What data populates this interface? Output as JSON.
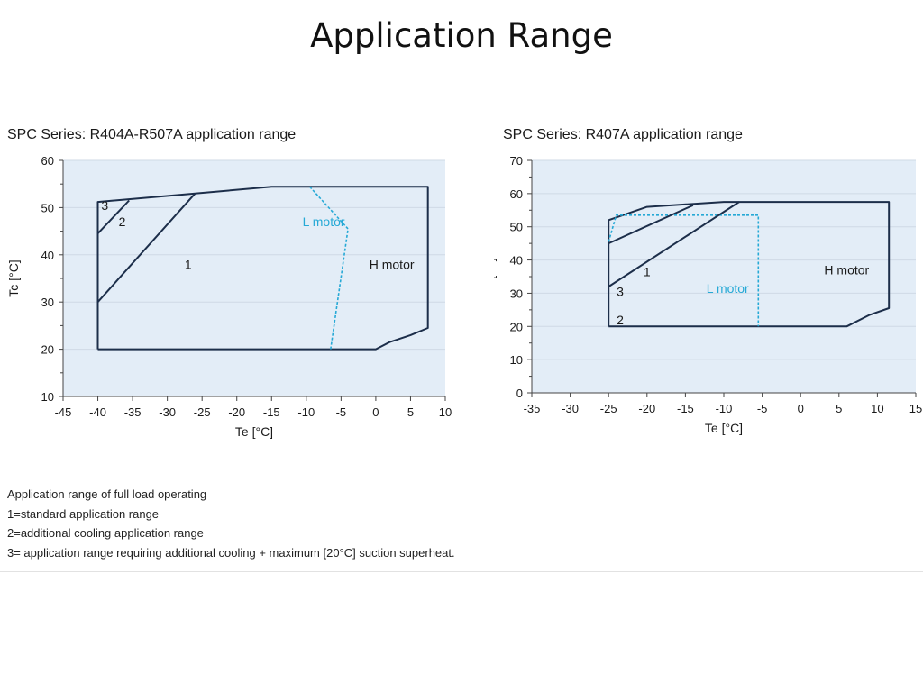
{
  "page": {
    "title": "Application Range"
  },
  "colors": {
    "plot_bg": "#e3edf7",
    "grid": "#cfdae6",
    "envelope": "#1c2e4a",
    "l_motor": "#26a9d6",
    "text": "#1a1a1a"
  },
  "notes": {
    "heading": "Application range of full load operating",
    "lines": [
      "1=standard application range",
      "2=additional cooling application range",
      "3= application range requiring additional cooling + maximum [20°C] suction superheat."
    ]
  },
  "chart_data": [
    {
      "type": "line",
      "title": "SPC Series: R404A-R507A application range",
      "xlabel": "Te [°C]",
      "ylabel": "Tc [°C]",
      "xlim": [
        -45,
        10
      ],
      "ylim": [
        10,
        60
      ],
      "xticks": [
        -45,
        -40,
        -35,
        -30,
        -25,
        -20,
        -15,
        -10,
        -5,
        0,
        5,
        10
      ],
      "yticks": [
        10,
        20,
        30,
        40,
        50,
        60
      ],
      "grid": "horizontal",
      "series": [
        {
          "name": "H motor",
          "style": "solid",
          "color": "#1c2e4a",
          "x": [
            -40,
            -40,
            -26,
            -15,
            7.5,
            7.5,
            5,
            2,
            0,
            -40
          ],
          "y": [
            20,
            51.2,
            53,
            54.4,
            54.4,
            24.5,
            23,
            21.5,
            20,
            20
          ]
        },
        {
          "name": "L motor",
          "style": "dashed",
          "color": "#26a9d6",
          "x": [
            -9.5,
            -4,
            -6.5
          ],
          "y": [
            54.4,
            45.5,
            20
          ]
        },
        {
          "style": "solid",
          "color": "#1c2e4a",
          "x": [
            -40,
            -26
          ],
          "y": [
            30,
            53
          ]
        },
        {
          "style": "solid",
          "color": "#1c2e4a",
          "x": [
            -40,
            -35.5
          ],
          "y": [
            44.5,
            51.5
          ]
        }
      ],
      "annotations": [
        {
          "text": "1",
          "x": -27,
          "y": 38,
          "color": "#1a1a1a"
        },
        {
          "text": "2",
          "x": -36.5,
          "y": 47,
          "color": "#1a1a1a"
        },
        {
          "text": "3",
          "x": -39,
          "y": 50.5,
          "color": "#1a1a1a"
        },
        {
          "text": "L motor",
          "x": -7.5,
          "y": 47,
          "color": "#26a9d6"
        },
        {
          "text": "H motor",
          "x": 2.3,
          "y": 38,
          "color": "#1a1a1a"
        }
      ]
    },
    {
      "type": "line",
      "title": "SPC Series: R407A application range",
      "xlabel": "Te [°C]",
      "ylabel": "Tc [°C]",
      "xlim": [
        -35,
        15
      ],
      "ylim": [
        0,
        70
      ],
      "xticks": [
        -35,
        -30,
        -25,
        -20,
        -15,
        -10,
        -5,
        0,
        5,
        10,
        15
      ],
      "yticks": [
        0,
        10,
        20,
        30,
        40,
        50,
        60,
        70
      ],
      "grid": "horizontal",
      "series": [
        {
          "name": "H motor",
          "style": "solid",
          "color": "#1c2e4a",
          "x": [
            -25,
            -25,
            -20,
            -10,
            11.5,
            11.5,
            9,
            6,
            -25
          ],
          "y": [
            20,
            52,
            56,
            57.5,
            57.5,
            25.5,
            23.5,
            20,
            20
          ]
        },
        {
          "name": "L motor",
          "style": "dashed",
          "color": "#26a9d6",
          "x": [
            -25,
            -24,
            -5.5,
            -5.5
          ],
          "y": [
            45.5,
            53.5,
            53.5,
            20
          ]
        },
        {
          "style": "solid",
          "color": "#1c2e4a",
          "x": [
            -25,
            -8
          ],
          "y": [
            32,
            57.5
          ]
        },
        {
          "style": "solid",
          "color": "#1c2e4a",
          "x": [
            -25,
            -14
          ],
          "y": [
            45,
            56.5
          ]
        }
      ],
      "annotations": [
        {
          "text": "1",
          "x": -20,
          "y": 36.5,
          "color": "#1a1a1a"
        },
        {
          "text": "2",
          "x": -23.5,
          "y": 22,
          "color": "#1a1a1a"
        },
        {
          "text": "3",
          "x": -23.5,
          "y": 30.5,
          "color": "#1a1a1a"
        },
        {
          "text": "L motor",
          "x": -9.5,
          "y": 31.5,
          "color": "#26a9d6"
        },
        {
          "text": "H motor",
          "x": 6,
          "y": 37,
          "color": "#1a1a1a"
        }
      ]
    }
  ]
}
